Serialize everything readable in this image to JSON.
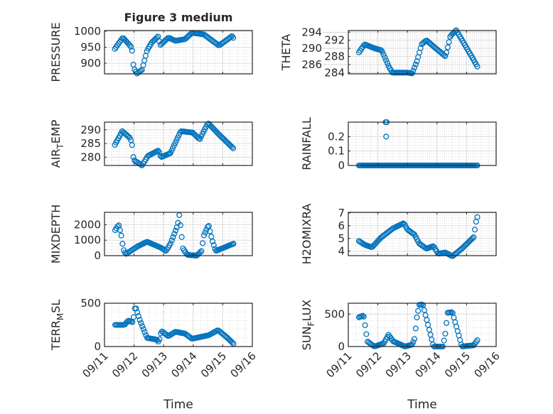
{
  "chart_data": {
    "type": "scatter",
    "title": "Figure 3 medium",
    "xlabel": "Time",
    "x_units": "days since 09/11 00:00",
    "xlim": [
      0,
      5
    ],
    "xticks": [
      0,
      1,
      2,
      3,
      4,
      5
    ],
    "xtick_labels": [
      "09/11",
      "09/12",
      "09/13",
      "09/14",
      "09/15",
      "09/16"
    ],
    "grid": true,
    "marker": "open-circle",
    "color": "#0072BD",
    "sample_step_days": 0.0417,
    "panels": [
      {
        "name": "PRESSURE",
        "ylabel": "PRESSURE",
        "col": 0,
        "row": 0,
        "ylim": [
          867,
          1002
        ],
        "yticks": [
          900,
          950,
          1000
        ],
        "points": [
          [
            0.35,
            945
          ],
          [
            0.62,
            980
          ],
          [
            0.87,
            955
          ],
          [
            0.93,
            945
          ],
          [
            0.95,
            915
          ],
          [
            0.99,
            885
          ],
          [
            1.1,
            868
          ],
          [
            1.27,
            880
          ],
          [
            1.44,
            940
          ],
          [
            1.6,
            965
          ],
          [
            1.83,
            985
          ],
          [
            1.87,
            955
          ],
          [
            2.16,
            980
          ],
          [
            2.4,
            970
          ],
          [
            2.72,
            975
          ],
          [
            2.96,
            995
          ],
          [
            3.36,
            990
          ],
          [
            3.87,
            955
          ],
          [
            4.32,
            985
          ],
          [
            4.38,
            975
          ]
        ]
      },
      {
        "name": "THETA",
        "ylabel": "THETA",
        "col": 1,
        "row": 0,
        "ylim": [
          283.7,
          294.4
        ],
        "yticks": [
          284,
          286,
          288,
          290,
          292,
          294
        ],
        "points": [
          [
            0.36,
            289
          ],
          [
            0.55,
            291
          ],
          [
            0.89,
            290
          ],
          [
            1.13,
            289.5
          ],
          [
            1.37,
            285.5
          ],
          [
            1.49,
            284
          ],
          [
            1.99,
            284
          ],
          [
            2.16,
            283.8
          ],
          [
            2.33,
            287
          ],
          [
            2.48,
            291
          ],
          [
            2.64,
            292
          ],
          [
            2.96,
            290
          ],
          [
            3.29,
            288
          ],
          [
            3.45,
            293
          ],
          [
            3.65,
            294.5
          ],
          [
            4.01,
            290
          ],
          [
            4.25,
            287
          ],
          [
            4.4,
            285
          ]
        ]
      },
      {
        "name": "AIR_TEMP",
        "ylabel": "AIR_TEMP",
        "col": 0,
        "row": 1,
        "ylim": [
          277,
          292.8
        ],
        "yticks": [
          280,
          285,
          290
        ],
        "points": [
          [
            0.35,
            284.5
          ],
          [
            0.6,
            289.5
          ],
          [
            0.87,
            287
          ],
          [
            0.93,
            285
          ],
          [
            0.95,
            282
          ],
          [
            0.99,
            279
          ],
          [
            1.27,
            277
          ],
          [
            1.47,
            280.5
          ],
          [
            1.83,
            282.5
          ],
          [
            1.91,
            280
          ],
          [
            2.23,
            281.5
          ],
          [
            2.58,
            289.5
          ],
          [
            2.98,
            289
          ],
          [
            3.22,
            286.5
          ],
          [
            3.5,
            292.5
          ],
          [
            3.9,
            288
          ],
          [
            4.38,
            283
          ]
        ]
      },
      {
        "name": "RAINFALL",
        "ylabel": "RAINFALL",
        "col": 1,
        "row": 1,
        "ylim": [
          0,
          0.3
        ],
        "yticks": [
          0,
          0.1,
          0.2
        ],
        "points": [
          [
            0.36,
            0
          ],
          [
            4.4,
            0
          ]
        ],
        "extra_points": [
          [
            1.26,
            0.3
          ],
          [
            1.3,
            0.3
          ],
          [
            1.28,
            0.2
          ]
        ]
      },
      {
        "name": "MIXDEPTH",
        "ylabel": "MIXDEPTH",
        "col": 0,
        "row": 2,
        "ylim": [
          0,
          2800
        ],
        "yticks": [
          0,
          1000,
          2000
        ],
        "points": [
          [
            0.36,
            1650
          ],
          [
            0.48,
            2000
          ],
          [
            0.56,
            1400
          ],
          [
            0.64,
            400
          ],
          [
            0.72,
            100
          ],
          [
            1.12,
            600
          ],
          [
            1.44,
            900
          ],
          [
            1.92,
            500
          ],
          [
            2.08,
            300
          ],
          [
            2.24,
            800
          ],
          [
            2.48,
            2000
          ],
          [
            2.52,
            2750
          ],
          [
            2.6,
            1500
          ],
          [
            2.64,
            500
          ],
          [
            2.8,
            50
          ],
          [
            3.12,
            0
          ],
          [
            3.28,
            300
          ],
          [
            3.36,
            1300
          ],
          [
            3.52,
            2000
          ],
          [
            3.64,
            1000
          ],
          [
            3.76,
            300
          ],
          [
            4.4,
            800
          ]
        ]
      },
      {
        "name": "H2OMIXRA",
        "ylabel": "H2OMIXRA",
        "col": 1,
        "row": 2,
        "ylim": [
          3.65,
          7.05
        ],
        "yticks": [
          4,
          5,
          6,
          7
        ],
        "points": [
          [
            0.36,
            4.8
          ],
          [
            0.56,
            4.5
          ],
          [
            0.8,
            4.3
          ],
          [
            1.12,
            5.1
          ],
          [
            1.52,
            5.8
          ],
          [
            1.88,
            6.2
          ],
          [
            2.0,
            5.7
          ],
          [
            2.24,
            5.3
          ],
          [
            2.4,
            4.6
          ],
          [
            2.64,
            4.2
          ],
          [
            2.88,
            4.4
          ],
          [
            3.04,
            3.8
          ],
          [
            3.28,
            3.9
          ],
          [
            3.52,
            3.6
          ],
          [
            3.84,
            4.2
          ],
          [
            4.24,
            5.1
          ],
          [
            4.32,
            6.3
          ],
          [
            4.4,
            7.0
          ]
        ]
      },
      {
        "name": "TERR_MSL",
        "ylabel": "TERR_MSL",
        "col": 0,
        "row": 3,
        "ylim": [
          0,
          500
        ],
        "yticks": [
          0,
          500
        ],
        "points": [
          [
            0.36,
            250
          ],
          [
            0.68,
            250
          ],
          [
            0.8,
            300
          ],
          [
            0.96,
            280
          ],
          [
            1.04,
            470
          ],
          [
            1.2,
            300
          ],
          [
            1.44,
            100
          ],
          [
            1.76,
            80
          ],
          [
            1.84,
            50
          ],
          [
            1.92,
            180
          ],
          [
            2.16,
            120
          ],
          [
            2.4,
            170
          ],
          [
            2.72,
            150
          ],
          [
            2.96,
            90
          ],
          [
            3.52,
            130
          ],
          [
            3.84,
            190
          ],
          [
            4.16,
            100
          ],
          [
            4.4,
            20
          ]
        ]
      },
      {
        "name": "SUN_FLUX",
        "ylabel": "SUN_FLUX",
        "col": 1,
        "row": 3,
        "ylim": [
          0,
          667
        ],
        "yticks": [
          0,
          500
        ],
        "points": [
          [
            0.36,
            450
          ],
          [
            0.52,
            480
          ],
          [
            0.6,
            230
          ],
          [
            0.64,
            80
          ],
          [
            0.88,
            0
          ],
          [
            1.2,
            50
          ],
          [
            1.36,
            180
          ],
          [
            1.52,
            80
          ],
          [
            1.92,
            0
          ],
          [
            2.16,
            30
          ],
          [
            2.24,
            120
          ],
          [
            2.32,
            450
          ],
          [
            2.4,
            640
          ],
          [
            2.52,
            650
          ],
          [
            2.88,
            0
          ],
          [
            3.2,
            0
          ],
          [
            3.28,
            200
          ],
          [
            3.36,
            520
          ],
          [
            3.52,
            530
          ],
          [
            3.84,
            0
          ],
          [
            4.24,
            20
          ],
          [
            4.4,
            120
          ]
        ]
      }
    ]
  }
}
